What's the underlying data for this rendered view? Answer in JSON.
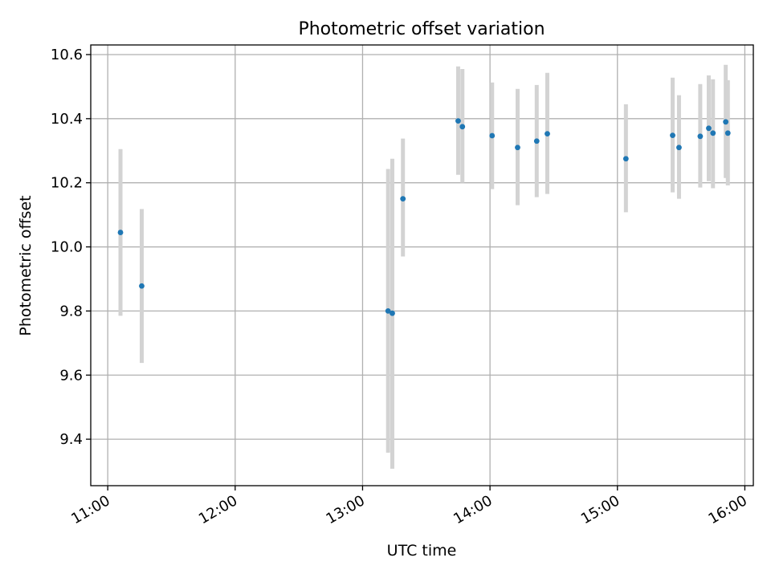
{
  "chart_data": {
    "type": "scatter",
    "title": "Photometric offset variation",
    "xlabel": "UTC time",
    "ylabel": "Photometric offset",
    "x_ticks": [
      "11:00",
      "12:00",
      "13:00",
      "14:00",
      "15:00",
      "16:00"
    ],
    "y_ticks": [
      "9.4",
      "9.6",
      "9.8",
      "10.0",
      "10.2",
      "10.4",
      "10.6"
    ],
    "xlim": [
      "10:52",
      "16:04"
    ],
    "ylim": [
      9.255,
      10.63
    ],
    "grid": true,
    "colors": {
      "points": "#1f77b4",
      "error_bars": "#d3d3d3",
      "grid": "#b0b0b0"
    },
    "series": [
      {
        "x": [
          "11:06",
          "11:16",
          "13:12",
          "13:14",
          "13:19",
          "13:45",
          "13:47",
          "14:01",
          "14:13",
          "14:22",
          "14:27",
          "15:04",
          "15:26",
          "15:29",
          "15:39",
          "15:43",
          "15:45",
          "15:51",
          "15:52"
        ],
        "y": [
          10.045,
          9.878,
          9.8,
          9.793,
          10.15,
          10.393,
          10.375,
          10.347,
          10.31,
          10.33,
          10.353,
          10.275,
          10.348,
          10.31,
          10.345,
          10.37,
          10.355,
          10.39,
          10.355
        ],
        "yerr_low": [
          9.785,
          9.638,
          9.358,
          9.308,
          9.97,
          10.225,
          10.2,
          10.18,
          10.13,
          10.155,
          10.165,
          10.108,
          10.17,
          10.15,
          10.185,
          10.205,
          10.183,
          10.215,
          10.192
        ],
        "yerr_high": [
          10.305,
          10.118,
          10.243,
          10.275,
          10.338,
          10.563,
          10.555,
          10.513,
          10.493,
          10.505,
          10.543,
          10.445,
          10.528,
          10.473,
          10.508,
          10.535,
          10.523,
          10.568,
          10.52
        ]
      }
    ]
  }
}
